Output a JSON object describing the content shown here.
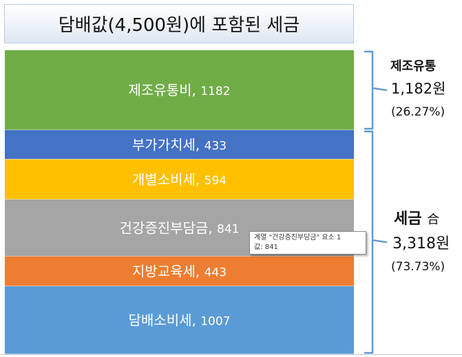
{
  "title": "담배값(4,500원)에 포함된 세금",
  "chart_data": {
    "type": "bar",
    "stacked": true,
    "orientation": "vertical-stack",
    "total": 4500,
    "categories": [
      "제조유통비",
      "부가가치세",
      "개별소비세",
      "건강증진부담금",
      "지방교육세",
      "담배소비세"
    ],
    "values": [
      1182,
      433,
      594,
      841,
      443,
      1007
    ],
    "colors": [
      "#70ad47",
      "#4472c4",
      "#ffc000",
      "#a5a5a5",
      "#ed7d31",
      "#5b9bd5"
    ],
    "labels": [
      "제조유통비, 1182",
      "부가가치세, 433",
      "개별소비세, 594",
      "건강증진부담금, 841",
      "지방교육세, 443",
      "담배소비세, 1007"
    ]
  },
  "annotations": {
    "manufacturing": {
      "title": "제조유통",
      "amount": "1,182원",
      "percent": "(26.27%)"
    },
    "tax": {
      "title": "세금",
      "suffix": "合",
      "amount": "3,318원",
      "percent": "(73.73%)"
    },
    "bracket_color": "#5b9bd5"
  },
  "tooltip": {
    "line1": "계열 \"건강증진부담금\" 요소 1",
    "line2": "값: 841"
  }
}
